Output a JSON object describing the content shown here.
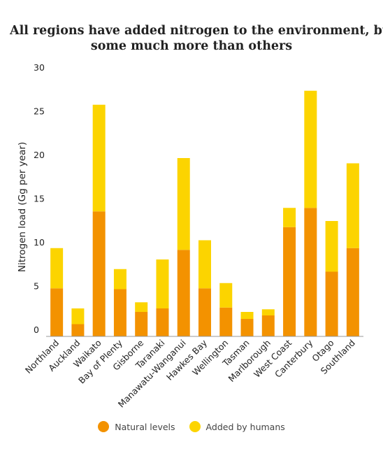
{
  "chart_data": {
    "type": "bar",
    "stacked": true,
    "title_lines": [
      "All regions have added nitrogen to the environment, but",
      "some much more than others"
    ],
    "ylabel": "Nitrogen load (Gg per year)",
    "ylim": [
      0,
      30
    ],
    "yticks": [
      0,
      5,
      10,
      15,
      20,
      25,
      30
    ],
    "grid": false,
    "legend_position": "bottom",
    "categories": [
      "Northland",
      "Auckland",
      "Waikato",
      "Bay of Plenty",
      "Gisborne",
      "Taranaki",
      "Manawatu-Wanganui",
      "Hawkes Bay",
      "Wellington",
      "Tasman",
      "Marlborough",
      "West Coast",
      "Canterbury",
      "Otago",
      "Southland"
    ],
    "series": [
      {
        "name": "Natural levels",
        "color": "#f39200",
        "values": [
          5.5,
          1.4,
          14.3,
          5.4,
          2.8,
          3.2,
          9.9,
          5.5,
          3.3,
          2.0,
          2.4,
          12.5,
          14.7,
          7.4,
          10.1
        ]
      },
      {
        "name": "Added by humans",
        "color": "#fcd400",
        "values": [
          4.6,
          1.8,
          12.2,
          2.3,
          1.1,
          5.6,
          10.5,
          5.5,
          2.8,
          0.8,
          0.7,
          2.2,
          13.4,
          5.8,
          9.7
        ]
      }
    ]
  }
}
